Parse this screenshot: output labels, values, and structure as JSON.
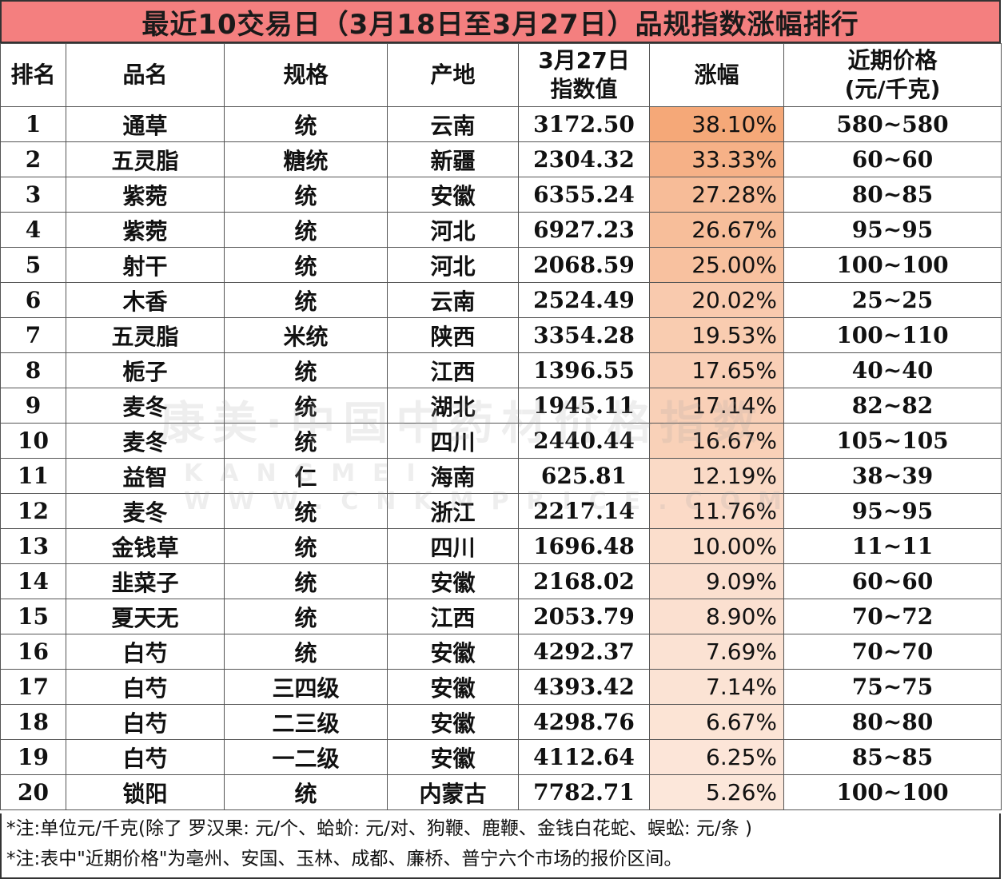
{
  "title": "最近10交易日（3月18日至3月27日）品规指数涨幅排行",
  "headers": {
    "rank": "排名",
    "name": "品名",
    "spec": "规格",
    "origin": "产地",
    "index_line1": "3月27日",
    "index_line2": "指数值",
    "change": "涨幅",
    "price_line1": "近期价格",
    "price_line2": "(元/千克)"
  },
  "rows": [
    {
      "rank": "1",
      "name": "通草",
      "spec": "统",
      "origin": "云南",
      "index": "3172.50",
      "change": "38.10%",
      "price": "580~580",
      "level": 1.0
    },
    {
      "rank": "2",
      "name": "五灵脂",
      "spec": "糖统",
      "origin": "新疆",
      "index": "2304.32",
      "change": "33.33%",
      "price": "60~60",
      "level": 0.87
    },
    {
      "rank": "3",
      "name": "紫菀",
      "spec": "统",
      "origin": "安徽",
      "index": "6355.24",
      "change": "27.28%",
      "price": "80~85",
      "level": 0.72
    },
    {
      "rank": "4",
      "name": "紫菀",
      "spec": "统",
      "origin": "河北",
      "index": "6927.23",
      "change": "26.67%",
      "price": "95~95",
      "level": 0.7
    },
    {
      "rank": "5",
      "name": "射干",
      "spec": "统",
      "origin": "河北",
      "index": "2068.59",
      "change": "25.00%",
      "price": "100~100",
      "level": 0.66
    },
    {
      "rank": "6",
      "name": "木香",
      "spec": "统",
      "origin": "云南",
      "index": "2524.49",
      "change": "20.02%",
      "price": "25~25",
      "level": 0.53
    },
    {
      "rank": "7",
      "name": "五灵脂",
      "spec": "米统",
      "origin": "陕西",
      "index": "3354.28",
      "change": "19.53%",
      "price": "100~110",
      "level": 0.51
    },
    {
      "rank": "8",
      "name": "栀子",
      "spec": "统",
      "origin": "江西",
      "index": "1396.55",
      "change": "17.65%",
      "price": "40~40",
      "level": 0.46
    },
    {
      "rank": "9",
      "name": "麦冬",
      "spec": "统",
      "origin": "湖北",
      "index": "1945.11",
      "change": "17.14%",
      "price": "82~82",
      "level": 0.45
    },
    {
      "rank": "10",
      "name": "麦冬",
      "spec": "统",
      "origin": "四川",
      "index": "2440.44",
      "change": "16.67%",
      "price": "105~105",
      "level": 0.44
    },
    {
      "rank": "11",
      "name": "益智",
      "spec": "仁",
      "origin": "海南",
      "index": "625.81",
      "change": "12.19%",
      "price": "38~39",
      "level": 0.32
    },
    {
      "rank": "12",
      "name": "麦冬",
      "spec": "统",
      "origin": "浙江",
      "index": "2217.14",
      "change": "11.76%",
      "price": "95~95",
      "level": 0.31
    },
    {
      "rank": "13",
      "name": "金钱草",
      "spec": "统",
      "origin": "四川",
      "index": "1696.48",
      "change": "10.00%",
      "price": "11~11",
      "level": 0.26
    },
    {
      "rank": "14",
      "name": "韭菜子",
      "spec": "统",
      "origin": "安徽",
      "index": "2168.02",
      "change": "9.09%",
      "price": "60~60",
      "level": 0.24
    },
    {
      "rank": "15",
      "name": "夏天无",
      "spec": "统",
      "origin": "江西",
      "index": "2053.79",
      "change": "8.90%",
      "price": "70~72",
      "level": 0.23
    },
    {
      "rank": "16",
      "name": "白芍",
      "spec": "统",
      "origin": "安徽",
      "index": "4292.37",
      "change": "7.69%",
      "price": "70~70",
      "level": 0.2
    },
    {
      "rank": "17",
      "name": "白芍",
      "spec": "三四级",
      "origin": "安徽",
      "index": "4393.42",
      "change": "7.14%",
      "price": "75~75",
      "level": 0.19
    },
    {
      "rank": "18",
      "name": "白芍",
      "spec": "二三级",
      "origin": "安徽",
      "index": "4298.76",
      "change": "6.67%",
      "price": "80~80",
      "level": 0.18
    },
    {
      "rank": "19",
      "name": "白芍",
      "spec": "一二级",
      "origin": "安徽",
      "index": "4112.64",
      "change": "6.25%",
      "price": "85~85",
      "level": 0.16
    },
    {
      "rank": "20",
      "name": "锁阳",
      "spec": "统",
      "origin": "内蒙古",
      "index": "7782.71",
      "change": "5.26%",
      "price": "100~100",
      "level": 0.14
    }
  ],
  "notes": [
    "*注:单位元/千克(除了 罗汉果: 元/个、蛤蚧: 元/对、狗鞭、鹿鞭、金钱白花蛇、蜈蚣: 元/条 )",
    "*注:表中\"近期价格\"为亳州、安国、玉林、成都、廉桥、普宁六个市场的报价区间。"
  ],
  "colors": {
    "title_bg": "#f47f7f",
    "heat_high": "#f5a878",
    "heat_low": "#fdf1ea"
  }
}
